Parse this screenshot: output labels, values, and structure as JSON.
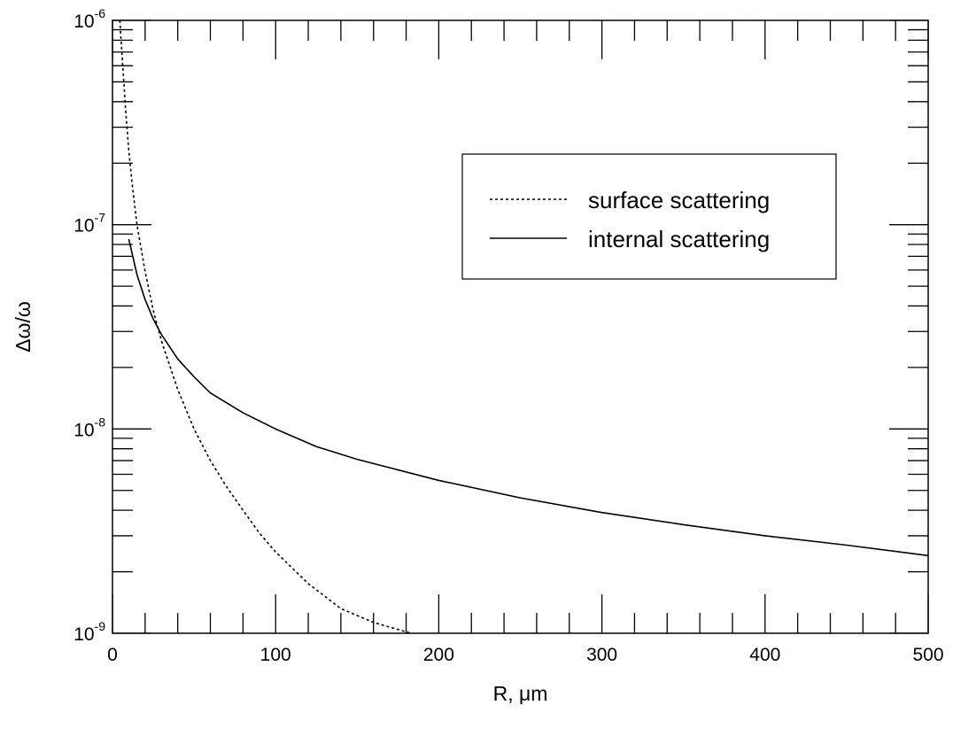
{
  "chart_data": {
    "type": "line",
    "title": "",
    "xlabel": "R, μm",
    "ylabel": "Δω/ω",
    "xlim": [
      0,
      500
    ],
    "ylim": [
      1e-09,
      1e-06
    ],
    "yscale": "log",
    "grid": false,
    "legend_position": "top-right",
    "x_ticks": [
      {
        "value": 0,
        "label": "0"
      },
      {
        "value": 100,
        "label": "100"
      },
      {
        "value": 200,
        "label": "200"
      },
      {
        "value": 300,
        "label": "300"
      },
      {
        "value": 400,
        "label": "400"
      },
      {
        "value": 500,
        "label": "500"
      }
    ],
    "y_ticks": [
      {
        "value": 1e-09,
        "base": "10",
        "exp": "-9"
      },
      {
        "value": 1e-08,
        "base": "10",
        "exp": "-8"
      },
      {
        "value": 1e-07,
        "base": "10",
        "exp": "-7"
      },
      {
        "value": 1e-06,
        "base": "10",
        "exp": "-6"
      }
    ],
    "series": [
      {
        "name": "surface scattering",
        "style": "dotted",
        "color": "#000000",
        "x": [
          4.5,
          6,
          8,
          10,
          12,
          15,
          20,
          25,
          30,
          40,
          50,
          60,
          70,
          80,
          90,
          100,
          120,
          140,
          160,
          183
        ],
        "y": [
          1e-06,
          6.5e-07,
          3.7e-07,
          2.3e-07,
          1.6e-07,
          1e-07,
          5.9e-08,
          3.8e-08,
          2.7e-08,
          1.56e-08,
          1e-08,
          7e-09,
          5.2e-09,
          4e-09,
          3.1e-09,
          2.5e-09,
          1.75e-09,
          1.32e-09,
          1.13e-09,
          1e-09
        ]
      },
      {
        "name": "internal scattering",
        "style": "solid",
        "color": "#000000",
        "x": [
          10,
          15,
          20,
          25,
          30,
          40,
          50,
          60,
          80,
          100,
          125,
          150,
          200,
          250,
          300,
          350,
          400,
          450,
          500
        ],
        "y": [
          8.5e-08,
          5.7e-08,
          4.3e-08,
          3.45e-08,
          2.9e-08,
          2.2e-08,
          1.8e-08,
          1.5e-08,
          1.2e-08,
          1e-08,
          8.2e-09,
          7.1e-09,
          5.6e-09,
          4.6e-09,
          3.9e-09,
          3.4e-09,
          3e-09,
          2.7e-09,
          2.4e-09
        ]
      }
    ]
  }
}
